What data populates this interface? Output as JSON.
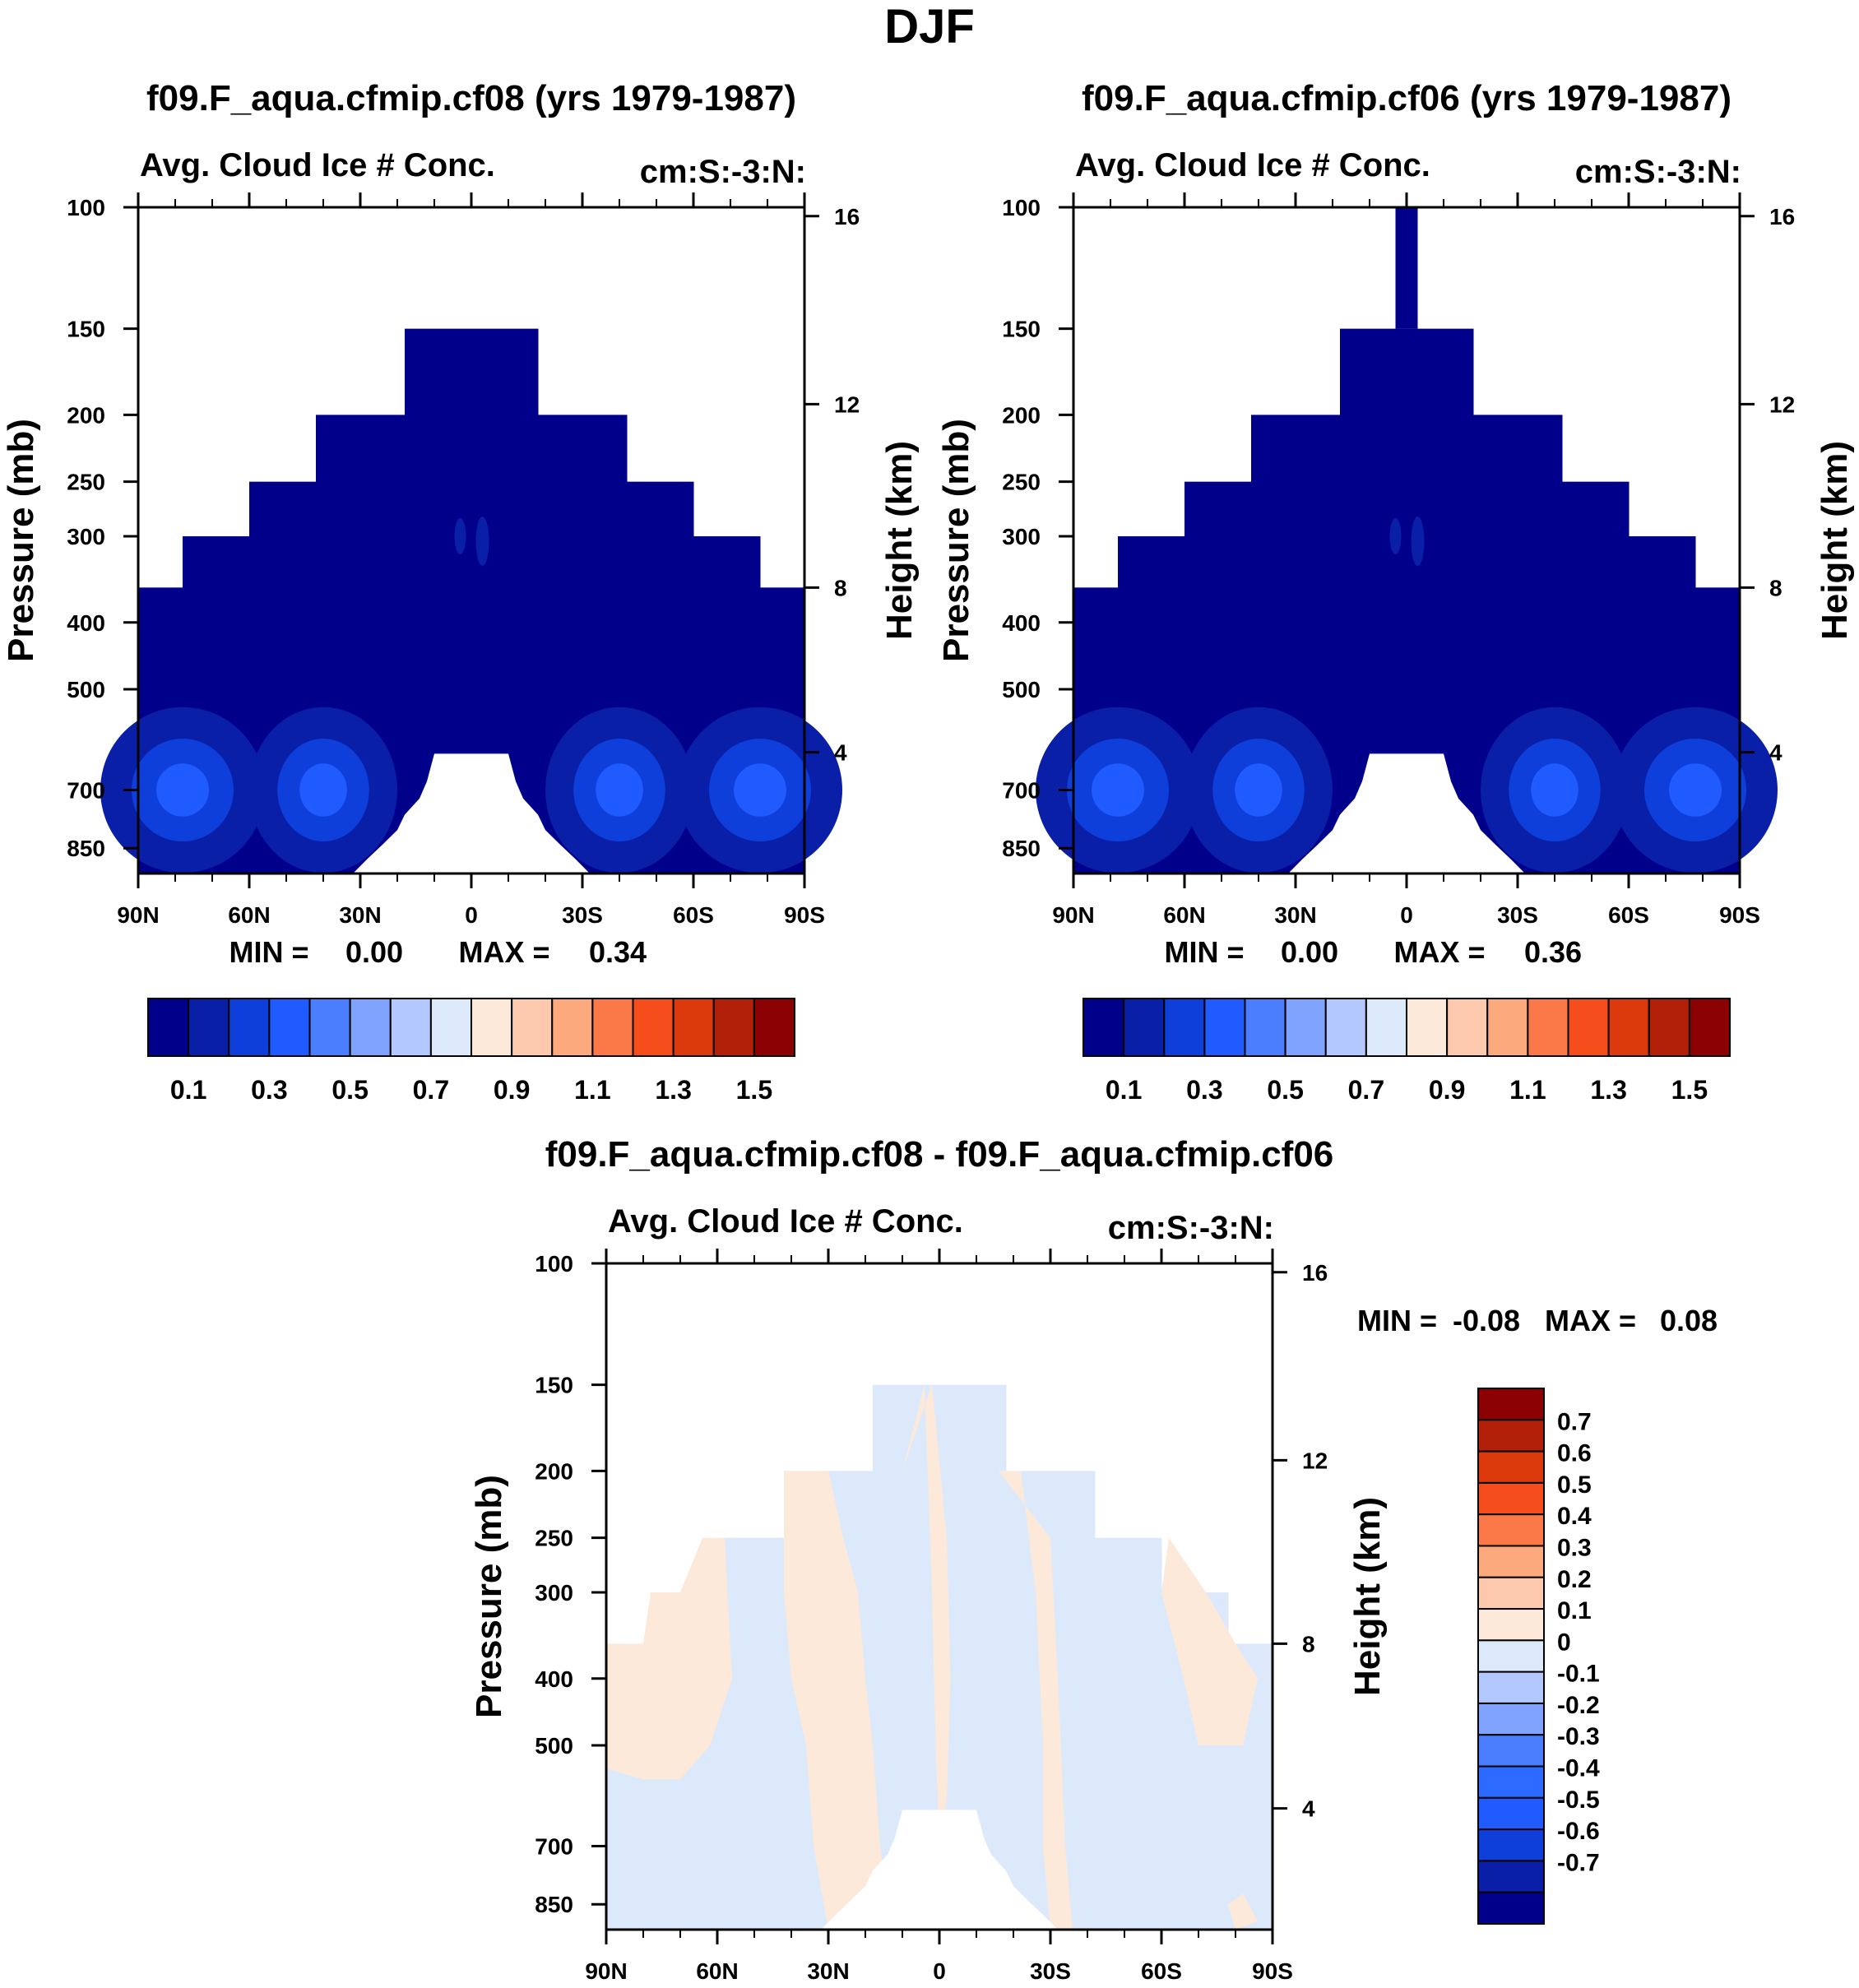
{
  "figure_title": "DJF",
  "colors": {
    "seq": [
      "#00008b",
      "#0a1fa8",
      "#0e3fdb",
      "#1f5bff",
      "#4b7dff",
      "#7fa3ff",
      "#b3c8ff",
      "#dce9fb",
      "#fde9d9",
      "#fcc9ae",
      "#fca97e",
      "#fb7849",
      "#f54e1c",
      "#dc3a0c",
      "#b3200a",
      "#8b0000"
    ],
    "diff": [
      "#00008b",
      "#0a1fa8",
      "#0e3fdb",
      "#1f5bff",
      "#2d6aff",
      "#4b7dff",
      "#7fa3ff",
      "#b3c8ff",
      "#dce9fb",
      "#fde9d9",
      "#fcc9ae",
      "#fca97e",
      "#fb7849",
      "#f54e1c",
      "#dc3a0c",
      "#b3200a",
      "#8b0000"
    ]
  },
  "chart_data": [
    {
      "type": "heatmap",
      "title": "f09.F_aqua.cfmip.cf08 (yrs 1979-1987)",
      "subtitle_left": "Avg. Cloud Ice # Conc.",
      "subtitle_right": "cm:S:-3:N:",
      "ylabel": "Pressure (mb)",
      "ylabel_right": "Height (km)",
      "x_ticks": [
        "90N",
        "60N",
        "30N",
        "0",
        "30S",
        "60S",
        "90S"
      ],
      "y_ticks": [
        "100",
        "150",
        "200",
        "250",
        "300",
        "400",
        "500",
        "700",
        "850"
      ],
      "y_ticks_right": [
        "16",
        "12",
        "8",
        "4"
      ],
      "stats": {
        "min_label": "MIN =",
        "min": "0.00",
        "max_label": "MAX =",
        "max": "0.34"
      },
      "colorbar_labels": [
        "0.1",
        "0.3",
        "0.5",
        "0.7",
        "0.9",
        "1.1",
        "1.3",
        "1.5"
      ],
      "field": {
        "value_range": [
          0.0,
          0.34
        ],
        "max_location": "near 40N/40S at 700 mb"
      }
    },
    {
      "type": "heatmap",
      "title": "f09.F_aqua.cfmip.cf06 (yrs 1979-1987)",
      "subtitle_left": "Avg. Cloud Ice # Conc.",
      "subtitle_right": "cm:S:-3:N:",
      "ylabel": "Pressure (mb)",
      "ylabel_right": "Height (km)",
      "x_ticks": [
        "90N",
        "60N",
        "30N",
        "0",
        "30S",
        "60S",
        "90S"
      ],
      "y_ticks": [
        "100",
        "150",
        "200",
        "250",
        "300",
        "400",
        "500",
        "700",
        "850"
      ],
      "y_ticks_right": [
        "16",
        "12",
        "8",
        "4"
      ],
      "stats": {
        "min_label": "MIN =",
        "min": "0.00",
        "max_label": "MAX =",
        "max": "0.36"
      },
      "colorbar_labels": [
        "0.1",
        "0.3",
        "0.5",
        "0.7",
        "0.9",
        "1.1",
        "1.3",
        "1.5"
      ],
      "field": {
        "value_range": [
          0.0,
          0.36
        ],
        "max_location": "near 40N/40S at 700 mb"
      }
    },
    {
      "type": "heatmap",
      "title": "f09.F_aqua.cfmip.cf08 - f09.F_aqua.cfmip.cf06",
      "subtitle_left": "Avg. Cloud Ice # Conc.",
      "subtitle_right": "cm:S:-3:N:",
      "ylabel": "Pressure (mb)",
      "ylabel_right": "Height (km)",
      "x_ticks": [
        "90N",
        "60N",
        "30N",
        "0",
        "30S",
        "60S",
        "90S"
      ],
      "y_ticks": [
        "100",
        "150",
        "200",
        "250",
        "300",
        "400",
        "500",
        "700",
        "850"
      ],
      "y_ticks_right": [
        "16",
        "12",
        "8",
        "4"
      ],
      "stats": {
        "min_label": "MIN =",
        "min": "-0.08",
        "max_label": "MAX =",
        "max": "0.08"
      },
      "colorbar_labels": [
        "0.7",
        "0.6",
        "0.5",
        "0.4",
        "0.3",
        "0.2",
        "0.1",
        "0",
        "-0.1",
        "-0.2",
        "-0.3",
        "-0.4",
        "-0.5",
        "-0.6",
        "-0.7"
      ],
      "field": {
        "value_range": [
          -0.08,
          0.08
        ]
      }
    }
  ]
}
